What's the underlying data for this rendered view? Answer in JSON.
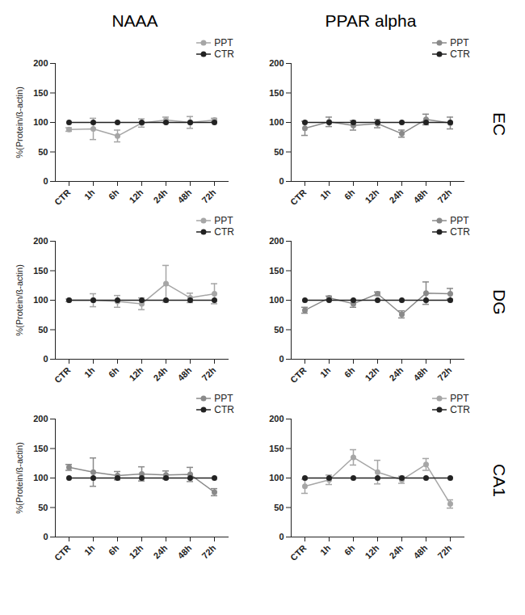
{
  "chart_data": [
    {
      "type": "line",
      "title": "NAAA",
      "y_label": "%(Protein/ß-actin)",
      "categories": [
        "CTR",
        "1h",
        "6h",
        "12h",
        "24h",
        "48h",
        "72h"
      ],
      "series": [
        {
          "name": "PPT",
          "color": "#a6a6a6",
          "marker": "circle",
          "values": [
            88,
            89,
            77,
            99,
            104,
            100,
            104
          ],
          "errors": [
            3,
            18,
            10,
            7,
            5,
            10,
            3
          ]
        },
        {
          "name": "CTR",
          "color": "#222222",
          "marker": "circle",
          "values": [
            100,
            100,
            100,
            100,
            100,
            100,
            100
          ]
        }
      ],
      "ylim": [
        0,
        200
      ],
      "yticks": [
        0,
        50,
        100,
        150,
        200
      ],
      "legend": "top-right"
    },
    {
      "type": "line",
      "title": "PPAR alpha",
      "annotation": "EC",
      "categories": [
        "CTR",
        "1h",
        "6h",
        "12h",
        "24h",
        "48h",
        "72h"
      ],
      "series": [
        {
          "name": "PPT",
          "color": "#8a8a8a",
          "marker": "circle",
          "values": [
            90,
            101,
            95,
            98,
            81,
            105,
            99
          ],
          "errors": [
            12,
            8,
            8,
            7,
            6,
            9,
            10
          ]
        },
        {
          "name": "CTR",
          "color": "#222222",
          "marker": "circle",
          "values": [
            100,
            100,
            100,
            100,
            100,
            100,
            100
          ]
        }
      ],
      "ylim": [
        0,
        200
      ],
      "yticks": [
        0,
        50,
        100,
        150,
        200
      ],
      "legend": "top-right"
    },
    {
      "type": "line",
      "y_label": "%(Protein/ß-actin)",
      "categories": [
        "CTR",
        "1h",
        "6h",
        "12h",
        "24h",
        "48h",
        "72h"
      ],
      "series": [
        {
          "name": "PPT",
          "color": "#a6a6a6",
          "marker": "circle",
          "values": [
            100,
            100,
            98,
            94,
            128,
            104,
            111
          ],
          "errors": [
            2,
            11,
            10,
            10,
            31,
            8,
            17
          ]
        },
        {
          "name": "CTR",
          "color": "#222222",
          "marker": "circle",
          "values": [
            100,
            100,
            100,
            100,
            100,
            100,
            100
          ]
        }
      ],
      "ylim": [
        0,
        200
      ],
      "yticks": [
        0,
        50,
        100,
        150,
        200
      ],
      "legend": "top-right"
    },
    {
      "type": "line",
      "annotation": "DG",
      "categories": [
        "CTR",
        "1h",
        "6h",
        "12h",
        "24h",
        "48h",
        "72h"
      ],
      "series": [
        {
          "name": "PPT",
          "color": "#8a8a8a",
          "marker": "circle",
          "values": [
            83,
            104,
            94,
            111,
            76,
            112,
            111
          ],
          "errors": [
            5,
            3,
            6,
            3,
            6,
            19,
            9
          ]
        },
        {
          "name": "CTR",
          "color": "#222222",
          "marker": "circle",
          "values": [
            100,
            100,
            100,
            100,
            100,
            100,
            100
          ]
        }
      ],
      "ylim": [
        0,
        200
      ],
      "yticks": [
        0,
        50,
        100,
        150,
        200
      ],
      "legend": "top-right"
    },
    {
      "type": "line",
      "y_label": "%(Protein/ß-actin)",
      "categories": [
        "CTR",
        "1h",
        "6h",
        "12h",
        "24h",
        "48h",
        "72h"
      ],
      "series": [
        {
          "name": "PPT",
          "color": "#8a8a8a",
          "marker": "circle",
          "values": [
            118,
            110,
            104,
            107,
            105,
            106,
            76
          ],
          "errors": [
            5,
            24,
            7,
            12,
            7,
            12,
            6
          ]
        },
        {
          "name": "CTR",
          "color": "#222222",
          "marker": "circle",
          "values": [
            100,
            100,
            100,
            100,
            100,
            100,
            100
          ]
        }
      ],
      "ylim": [
        0,
        200
      ],
      "yticks": [
        0,
        50,
        100,
        150,
        200
      ],
      "legend": "top-right"
    },
    {
      "type": "line",
      "annotation": "CA1",
      "categories": [
        "CTR",
        "1h",
        "6h",
        "12h",
        "24h",
        "48h",
        "72h"
      ],
      "series": [
        {
          "name": "PPT",
          "color": "#a6a6a6",
          "marker": "circle",
          "values": [
            86,
            97,
            135,
            110,
            97,
            123,
            56
          ],
          "errors": [
            12,
            8,
            13,
            20,
            6,
            10,
            7
          ]
        },
        {
          "name": "CTR",
          "color": "#222222",
          "marker": "circle",
          "values": [
            100,
            100,
            100,
            100,
            100,
            100,
            100
          ]
        }
      ],
      "ylim": [
        0,
        200
      ],
      "yticks": [
        0,
        50,
        100,
        150,
        200
      ],
      "legend": "top-right"
    }
  ]
}
